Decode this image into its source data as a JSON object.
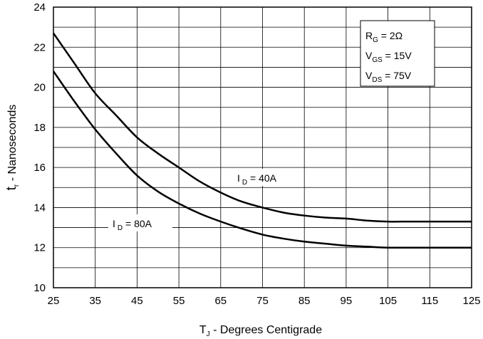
{
  "chart_data": {
    "type": "line",
    "xlabel": {
      "main": "T",
      "sub": "J",
      "rest": " - Degrees Centigrade"
    },
    "ylabel": {
      "main": "t",
      "sub": "r",
      "rest": " - Nanoseconds"
    },
    "xlim": [
      25,
      125
    ],
    "ylim": [
      10,
      24
    ],
    "xticks": [
      25,
      35,
      45,
      55,
      65,
      75,
      85,
      95,
      105,
      115,
      125
    ],
    "yticks": [
      10,
      12,
      14,
      16,
      18,
      20,
      22,
      24
    ],
    "grid": true,
    "conditions": [
      {
        "main": "R",
        "sub": "G",
        "rest": " = 2Ω"
      },
      {
        "main": "V",
        "sub": "GS",
        "rest": " = 15V"
      },
      {
        "main": "V",
        "sub": "DS",
        "rest": " = 75V"
      }
    ],
    "series": [
      {
        "name": "I D = 40A",
        "label": {
          "main": "I",
          "sub": "D",
          "rest": " = 40A"
        },
        "x": [
          25,
          30,
          35,
          40,
          45,
          50,
          55,
          60,
          65,
          70,
          75,
          80,
          85,
          90,
          95,
          100,
          105,
          110,
          115,
          120,
          125
        ],
        "y": [
          22.7,
          21.2,
          19.7,
          18.6,
          17.5,
          16.7,
          16.0,
          15.3,
          14.75,
          14.3,
          14.0,
          13.75,
          13.6,
          13.5,
          13.45,
          13.35,
          13.3,
          13.3,
          13.3,
          13.3,
          13.3
        ]
      },
      {
        "name": "I D = 80A",
        "label": {
          "main": "I",
          "sub": "D",
          "rest": " = 80A"
        },
        "x": [
          25,
          30,
          35,
          40,
          45,
          50,
          55,
          60,
          65,
          70,
          75,
          80,
          85,
          90,
          95,
          100,
          105,
          110,
          115,
          120,
          125
        ],
        "y": [
          20.8,
          19.3,
          17.9,
          16.7,
          15.6,
          14.8,
          14.2,
          13.7,
          13.3,
          12.95,
          12.65,
          12.45,
          12.3,
          12.2,
          12.1,
          12.05,
          12.0,
          12.0,
          12.0,
          12.0,
          12.0
        ]
      }
    ]
  }
}
